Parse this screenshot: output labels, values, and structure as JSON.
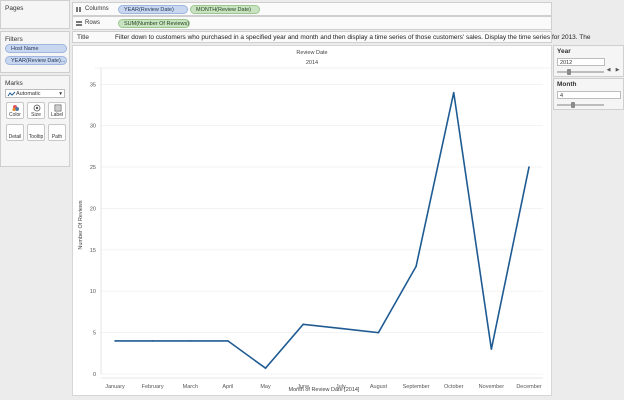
{
  "pages": {
    "title": "Pages"
  },
  "filters": {
    "title": "Filters",
    "items": [
      "Host Name",
      "YEAR(Review Date)..."
    ]
  },
  "marks": {
    "title": "Marks",
    "type_value": "Automatic",
    "buttons": [
      "Color",
      "Size",
      "Label",
      "Detail",
      "Tooltip",
      "Path"
    ]
  },
  "shelves": {
    "columns_label": "Columns",
    "columns": [
      "YEAR(Review Date)",
      "MONTH(Review Date)"
    ],
    "rows_label": "Rows",
    "rows": [
      "SUM(Number Of Reviews)"
    ]
  },
  "title_bar": {
    "label": "Title",
    "text": "Filter down to customers who purchased in a specified year and month and then display a time series of those customers' sales.  Display the time series for 2013.  The"
  },
  "parameters": {
    "year": {
      "label": "Year",
      "value": "2012",
      "slider_position": 0.25
    },
    "month": {
      "label": "Month",
      "value": "4",
      "slider_position": 0.35
    }
  },
  "chart_data": {
    "type": "line",
    "header_title": "Review Date",
    "header_subtitle": "2014",
    "categories": [
      "January",
      "February",
      "March",
      "April",
      "May",
      "June",
      "July",
      "August",
      "September",
      "October",
      "November",
      "December"
    ],
    "values": [
      4,
      4,
      4,
      4,
      0.7,
      6,
      5.5,
      5,
      13,
      34,
      3,
      25
    ],
    "xlabel": "Month of Review Date [2014]",
    "ylabel": "Number Of Reviews",
    "ylim": [
      0,
      36
    ],
    "yticks": [
      0,
      5,
      10,
      15,
      20,
      25,
      30,
      35
    ],
    "grid": true,
    "color": "#1f5b93"
  }
}
